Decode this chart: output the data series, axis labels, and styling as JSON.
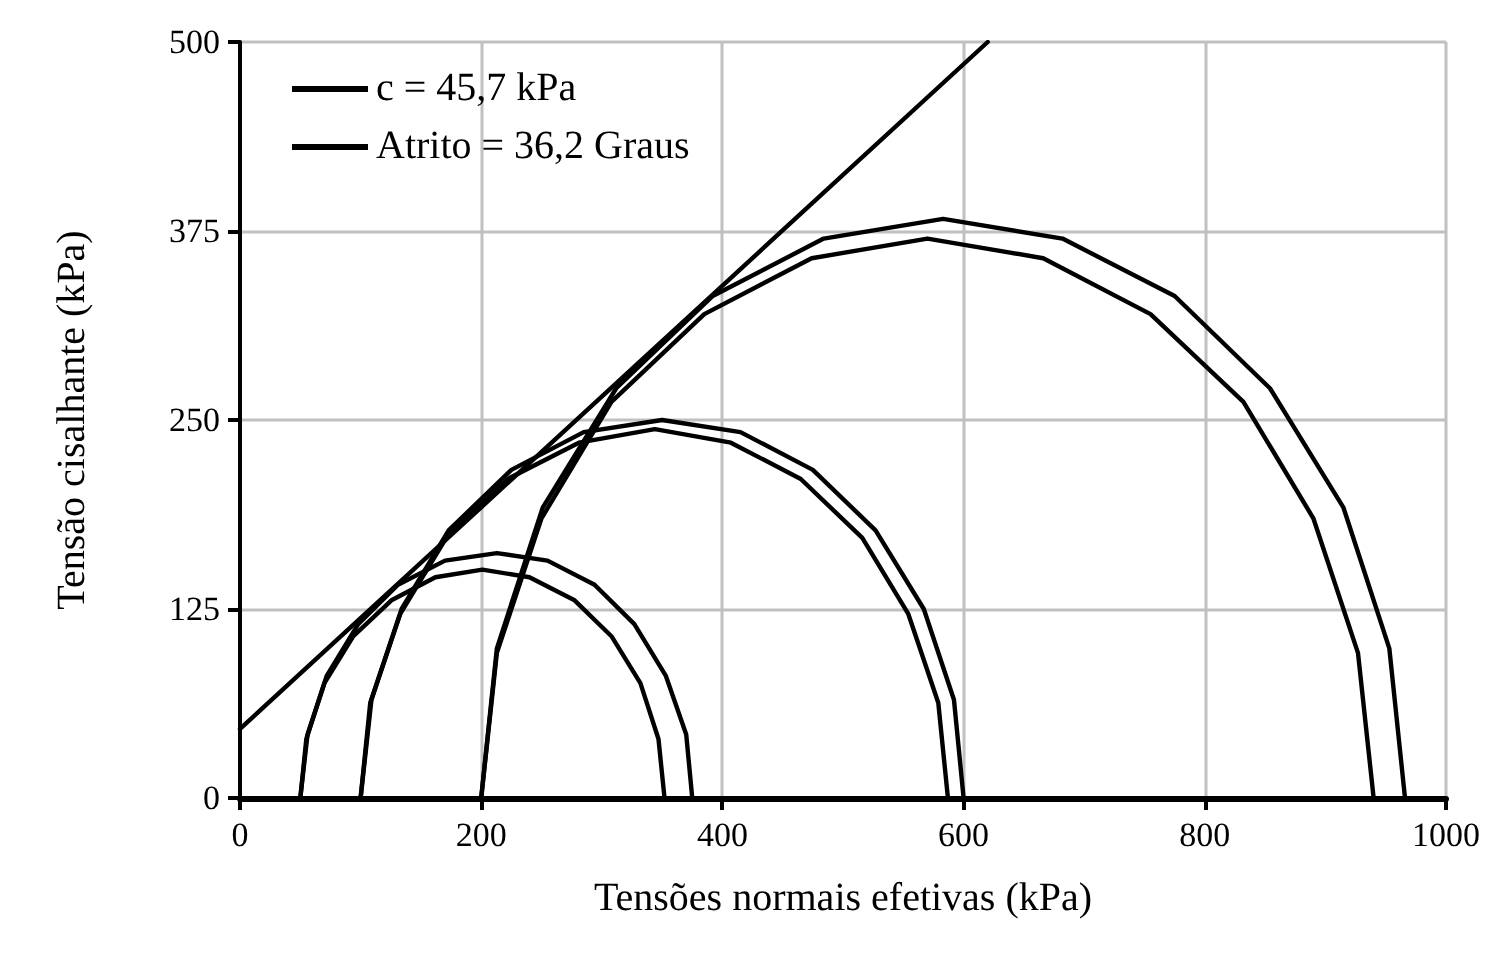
{
  "chart_data": {
    "type": "line",
    "xlabel": "Tensões normais efetivas (kPa)",
    "ylabel": "Tensão cisalhante (kPa)",
    "annotations": [
      "c = 45,7 kPa",
      "Atrito = 36,2 Graus"
    ],
    "xlim": [
      0,
      1000
    ],
    "xticks": [
      0,
      200,
      400,
      600,
      800,
      1000
    ],
    "ylim": [
      0,
      500
    ],
    "yticks": [
      0,
      125,
      250,
      375,
      500
    ],
    "grid": true,
    "marker": "none",
    "line_style": "solid",
    "series": [
      {
        "color": "#000000",
        "x": [
          0,
          620
        ],
        "values": [
          45.7,
          500
        ]
      },
      {
        "color": "#000000",
        "x": [
          50,
          55,
          70,
          94,
          126,
          162,
          201,
          240,
          277,
          308,
          332,
          347,
          352
        ],
        "values": [
          0,
          39,
          76,
          107,
          131,
          146,
          151,
          146,
          131,
          107,
          76,
          39,
          0
        ]
      },
      {
        "color": "#000000",
        "x": [
          50,
          56,
          72,
          98,
          131,
          170,
          213,
          255,
          294,
          327,
          353,
          370,
          375
        ],
        "values": [
          0,
          42,
          81,
          115,
          141,
          157,
          162,
          157,
          141,
          115,
          81,
          42,
          0
        ]
      },
      {
        "color": "#000000",
        "x": [
          100,
          109,
          134,
          173,
          225,
          285,
          350,
          415,
          475,
          527,
          567,
          592,
          600
        ],
        "values": [
          0,
          65,
          125,
          177,
          217,
          242,
          250,
          242,
          217,
          177,
          125,
          65,
          0
        ]
      },
      {
        "color": "#000000",
        "x": [
          100,
          108,
          133,
          171,
          222,
          281,
          344,
          407,
          465,
          516,
          554,
          579,
          587
        ],
        "values": [
          0,
          63,
          122,
          172,
          211,
          235,
          244,
          235,
          211,
          172,
          122,
          63,
          0
        ]
      },
      {
        "color": "#000000",
        "x": [
          200,
          213,
          251,
          312,
          392,
          484,
          583,
          682,
          775,
          854,
          915,
          953,
          966
        ],
        "values": [
          0,
          99,
          192,
          271,
          332,
          370,
          383,
          370,
          332,
          271,
          192,
          99,
          0
        ]
      },
      {
        "color": "#000000",
        "x": [
          200,
          213,
          250,
          308,
          385,
          474,
          570,
          666,
          755,
          832,
          890,
          927,
          940
        ],
        "values": [
          0,
          96,
          185,
          262,
          320,
          357,
          370,
          357,
          320,
          262,
          185,
          96,
          0
        ]
      }
    ]
  }
}
